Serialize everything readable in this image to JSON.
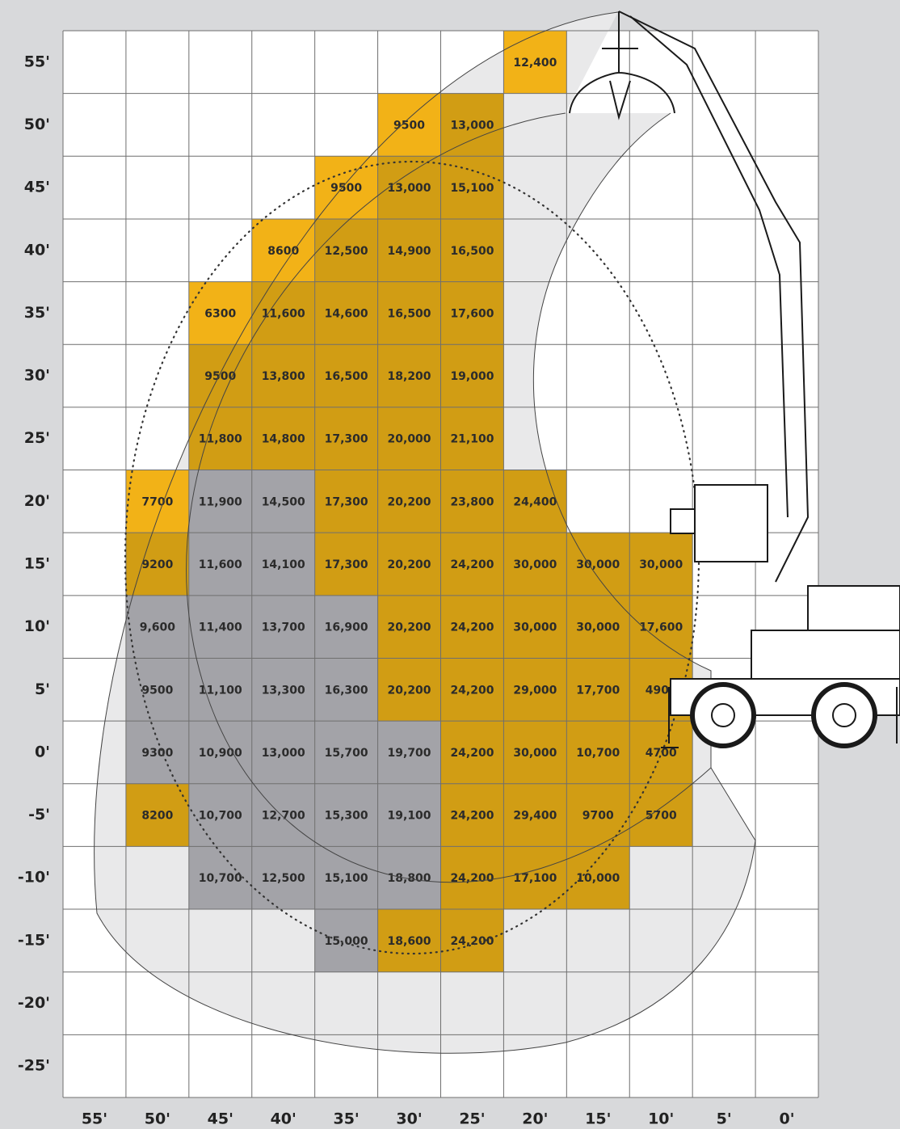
{
  "y_labels": [
    "55'",
    "50'",
    "45'",
    "40'",
    "35'",
    "30'",
    "25'",
    "20'",
    "15'",
    "10'",
    "5'",
    "0'",
    "-5'",
    "-10'",
    "-15'",
    "-20'",
    "-25'"
  ],
  "x_labels": [
    "55'",
    "50'",
    "45'",
    "40'",
    "35'",
    "30'",
    "25'",
    "20'",
    "15'",
    "10'",
    "5'",
    "0'"
  ],
  "rows": [
    [
      null,
      null,
      null,
      null,
      null,
      null,
      null,
      {
        "text": "12,400",
        "color": "#f2b217"
      },
      null,
      null,
      null,
      null
    ],
    [
      null,
      null,
      null,
      null,
      null,
      {
        "text": "9500",
        "color": "#f2b217"
      },
      {
        "text": "13,000",
        "color": "#d19d14"
      },
      null,
      null,
      null,
      null,
      null
    ],
    [
      null,
      null,
      null,
      null,
      {
        "text": "9500",
        "color": "#f2b217"
      },
      {
        "text": "13,000",
        "color": "#d19d14"
      },
      {
        "text": "15,100",
        "color": "#d19d14"
      },
      null,
      null,
      null,
      null,
      null
    ],
    [
      null,
      null,
      null,
      {
        "text": "8600",
        "color": "#f2b217"
      },
      {
        "text": "12,500",
        "color": "#d19d14"
      },
      {
        "text": "14,900",
        "color": "#d19d14"
      },
      {
        "text": "16,500",
        "color": "#d19d14"
      },
      null,
      null,
      null,
      null,
      null
    ],
    [
      null,
      null,
      {
        "text": "6300",
        "color": "#f2b217"
      },
      {
        "text": "11,600",
        "color": "#d19d14"
      },
      {
        "text": "14,600",
        "color": "#d19d14"
      },
      {
        "text": "16,500",
        "color": "#d19d14"
      },
      {
        "text": "17,600",
        "color": "#d19d14"
      },
      null,
      null,
      null,
      null,
      null
    ],
    [
      null,
      null,
      {
        "text": "9500",
        "color": "#d19d14"
      },
      {
        "text": "13,800",
        "color": "#d19d14"
      },
      {
        "text": "16,500",
        "color": "#d19d14"
      },
      {
        "text": "18,200",
        "color": "#d19d14"
      },
      {
        "text": "19,000",
        "color": "#d19d14"
      },
      null,
      null,
      null,
      null,
      null
    ],
    [
      null,
      null,
      {
        "text": "11,800",
        "color": "#d19d14"
      },
      {
        "text": "14,800",
        "color": "#d19d14"
      },
      {
        "text": "17,300",
        "color": "#d19d14"
      },
      {
        "text": "20,000",
        "color": "#d19d14"
      },
      {
        "text": "21,100",
        "color": "#d19d14"
      },
      null,
      null,
      null,
      null,
      null
    ],
    [
      null,
      {
        "text": "7700",
        "color": "#f2b217"
      },
      {
        "text": "11,900",
        "color": "#a3a3a8"
      },
      {
        "text": "14,500",
        "color": "#a3a3a8"
      },
      {
        "text": "17,300",
        "color": "#d19d14"
      },
      {
        "text": "20,200",
        "color": "#d19d14"
      },
      {
        "text": "23,800",
        "color": "#d19d14"
      },
      {
        "text": "24,400",
        "color": "#d19d14"
      },
      null,
      null,
      null,
      null
    ],
    [
      null,
      {
        "text": "9200",
        "color": "#d19d14"
      },
      {
        "text": "11,600",
        "color": "#a3a3a8"
      },
      {
        "text": "14,100",
        "color": "#a3a3a8"
      },
      {
        "text": "17,300",
        "color": "#d19d14"
      },
      {
        "text": "20,200",
        "color": "#d19d14"
      },
      {
        "text": "24,200",
        "color": "#d19d14"
      },
      {
        "text": "30,000",
        "color": "#d19d14"
      },
      {
        "text": "30,000",
        "color": "#d19d14"
      },
      {
        "text": "30,000",
        "color": "#d19d14"
      },
      null,
      null
    ],
    [
      null,
      {
        "text": "9,600",
        "color": "#a3a3a8"
      },
      {
        "text": "11,400",
        "color": "#a3a3a8"
      },
      {
        "text": "13,700",
        "color": "#a3a3a8"
      },
      {
        "text": "16,900",
        "color": "#a3a3a8"
      },
      {
        "text": "20,200",
        "color": "#d19d14"
      },
      {
        "text": "24,200",
        "color": "#d19d14"
      },
      {
        "text": "30,000",
        "color": "#d19d14"
      },
      {
        "text": "30,000",
        "color": "#d19d14"
      },
      {
        "text": "17,600",
        "color": "#d19d14"
      },
      null,
      null
    ],
    [
      null,
      {
        "text": "9500",
        "color": "#a3a3a8"
      },
      {
        "text": "11,100",
        "color": "#a3a3a8"
      },
      {
        "text": "13,300",
        "color": "#a3a3a8"
      },
      {
        "text": "16,300",
        "color": "#a3a3a8"
      },
      {
        "text": "20,200",
        "color": "#d19d14"
      },
      {
        "text": "24,200",
        "color": "#d19d14"
      },
      {
        "text": "29,000",
        "color": "#d19d14"
      },
      {
        "text": "17,700",
        "color": "#d19d14"
      },
      {
        "text": "4900",
        "color": "#d19d14"
      },
      null,
      null
    ],
    [
      null,
      {
        "text": "9300",
        "color": "#a3a3a8"
      },
      {
        "text": "10,900",
        "color": "#a3a3a8"
      },
      {
        "text": "13,000",
        "color": "#a3a3a8"
      },
      {
        "text": "15,700",
        "color": "#a3a3a8"
      },
      {
        "text": "19,700",
        "color": "#a3a3a8"
      },
      {
        "text": "24,200",
        "color": "#d19d14"
      },
      {
        "text": "30,000",
        "color": "#d19d14"
      },
      {
        "text": "10,700",
        "color": "#d19d14"
      },
      {
        "text": "4700",
        "color": "#d19d14"
      },
      null,
      null
    ],
    [
      null,
      {
        "text": "8200",
        "color": "#d19d14"
      },
      {
        "text": "10,700",
        "color": "#a3a3a8"
      },
      {
        "text": "12,700",
        "color": "#a3a3a8"
      },
      {
        "text": "15,300",
        "color": "#a3a3a8"
      },
      {
        "text": "19,100",
        "color": "#a3a3a8"
      },
      {
        "text": "24,200",
        "color": "#d19d14"
      },
      {
        "text": "29,400",
        "color": "#d19d14"
      },
      {
        "text": "9700",
        "color": "#d19d14"
      },
      {
        "text": "5700",
        "color": "#d19d14"
      },
      null,
      null
    ],
    [
      null,
      null,
      {
        "text": "10,700",
        "color": "#a3a3a8"
      },
      {
        "text": "12,500",
        "color": "#a3a3a8"
      },
      {
        "text": "15,100",
        "color": "#a3a3a8"
      },
      {
        "text": "18,800",
        "color": "#a3a3a8"
      },
      {
        "text": "24,200",
        "color": "#d19d14"
      },
      {
        "text": "17,100",
        "color": "#d19d14"
      },
      {
        "text": "10,000",
        "color": "#d19d14"
      },
      null,
      null,
      null
    ],
    [
      null,
      null,
      null,
      null,
      {
        "text": "15,000",
        "color": "#a3a3a8"
      },
      {
        "text": "18,600",
        "color": "#d19d14"
      },
      {
        "text": "24,200",
        "color": "#d19d14"
      },
      null,
      null,
      null,
      null,
      null
    ],
    [
      null,
      null,
      null,
      null,
      null,
      null,
      null,
      null,
      null,
      null,
      null,
      null
    ],
    [
      null,
      null,
      null,
      null,
      null,
      null,
      null,
      null,
      null,
      null,
      null,
      null
    ]
  ]
}
